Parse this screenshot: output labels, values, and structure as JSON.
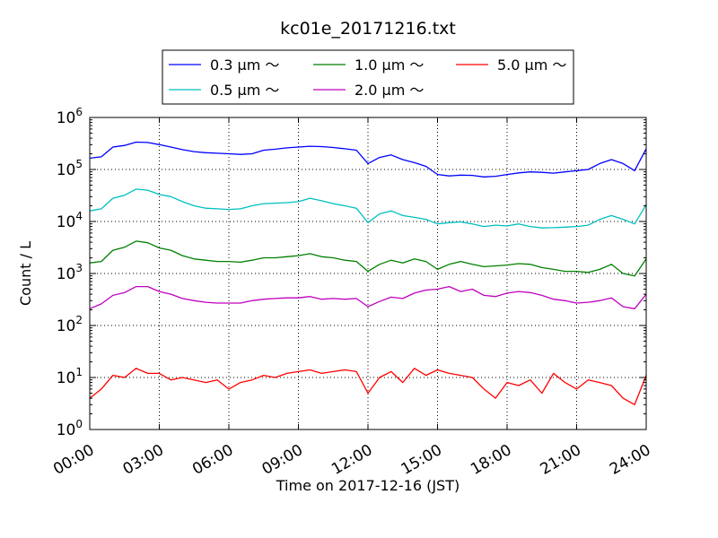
{
  "chart_data": {
    "type": "line",
    "title": "kc01e_20171216.txt",
    "xlabel": "Time on 2017-12-16 (JST)",
    "ylabel": "Count / L",
    "yscale": "log",
    "ylim": [
      1,
      1000000
    ],
    "xlim": [
      "00:00",
      "24:00"
    ],
    "xtick_labels": [
      "00:00",
      "03:00",
      "06:00",
      "09:00",
      "12:00",
      "15:00",
      "18:00",
      "21:00",
      "24:00"
    ],
    "ytick_labels": [
      {
        "base": "10",
        "exp": "0"
      },
      {
        "base": "10",
        "exp": "1"
      },
      {
        "base": "10",
        "exp": "2"
      },
      {
        "base": "10",
        "exp": "3"
      },
      {
        "base": "10",
        "exp": "4"
      },
      {
        "base": "10",
        "exp": "5"
      },
      {
        "base": "10",
        "exp": "6"
      }
    ],
    "grid": true,
    "legend_position": "top-center",
    "x_hours": [
      0,
      0.5,
      1,
      1.5,
      2,
      2.5,
      3,
      3.5,
      4,
      4.5,
      5,
      5.5,
      6,
      6.5,
      7,
      7.5,
      8,
      8.5,
      9,
      9.5,
      10,
      10.5,
      11,
      11.5,
      12,
      12.5,
      13,
      13.5,
      14,
      14.5,
      15,
      15.5,
      16,
      16.5,
      17,
      17.5,
      18,
      18.5,
      19,
      19.5,
      20,
      20.5,
      21,
      21.5,
      22,
      22.5,
      23,
      23.5,
      24
    ],
    "series": [
      {
        "name": "0.3 μm ～",
        "color": "#0000ff",
        "values": [
          165000,
          175000,
          270000,
          290000,
          335000,
          330000,
          300000,
          270000,
          240000,
          220000,
          210000,
          205000,
          200000,
          195000,
          200000,
          235000,
          245000,
          260000,
          270000,
          280000,
          275000,
          265000,
          250000,
          235000,
          130000,
          170000,
          190000,
          155000,
          135000,
          115000,
          80000,
          75000,
          78000,
          77000,
          72000,
          74000,
          80000,
          86000,
          90000,
          88000,
          85000,
          90000,
          95000,
          100000,
          130000,
          155000,
          130000,
          95000,
          250000
        ]
      },
      {
        "name": "0.5 μm ～",
        "color": "#00bfbf",
        "values": [
          16000,
          17500,
          28000,
          32000,
          42000,
          40000,
          33000,
          30000,
          24000,
          20000,
          18000,
          17500,
          17000,
          17500,
          20000,
          22000,
          22500,
          23000,
          24000,
          28000,
          25000,
          22000,
          20000,
          18000,
          9500,
          14000,
          16000,
          13000,
          12000,
          11000,
          9000,
          9500,
          9800,
          9000,
          8000,
          8500,
          8200,
          9000,
          8000,
          7500,
          7600,
          7800,
          8000,
          8500,
          11000,
          13000,
          11000,
          9000,
          21000
        ]
      },
      {
        "name": "1.0 μm ～",
        "color": "#008000",
        "values": [
          1600,
          1700,
          2800,
          3200,
          4200,
          3900,
          3100,
          2800,
          2200,
          1900,
          1800,
          1700,
          1700,
          1650,
          1800,
          2000,
          2000,
          2100,
          2200,
          2400,
          2100,
          2000,
          1800,
          1700,
          1100,
          1500,
          1800,
          1600,
          1900,
          1700,
          1200,
          1500,
          1700,
          1500,
          1350,
          1400,
          1450,
          1550,
          1500,
          1300,
          1200,
          1100,
          1100,
          1050,
          1200,
          1500,
          1000,
          900,
          1900
        ]
      },
      {
        "name": "2.0 μm ～",
        "color": "#bf00bf",
        "values": [
          210,
          260,
          380,
          430,
          560,
          560,
          450,
          400,
          330,
          300,
          280,
          270,
          270,
          270,
          300,
          320,
          330,
          340,
          340,
          360,
          320,
          330,
          320,
          330,
          230,
          290,
          350,
          330,
          420,
          480,
          500,
          560,
          450,
          500,
          380,
          360,
          420,
          450,
          430,
          380,
          320,
          300,
          270,
          280,
          300,
          340,
          230,
          210,
          400
        ]
      },
      {
        "name": "5.0 μm ～",
        "color": "#ff0000",
        "values": [
          4,
          6,
          11,
          10,
          15,
          12,
          12,
          9,
          10,
          9,
          8,
          9,
          6,
          8,
          9,
          11,
          10,
          12,
          13,
          14,
          12,
          13,
          14,
          13,
          5,
          10,
          13,
          8,
          15,
          11,
          14,
          12,
          11,
          10,
          6,
          4,
          8,
          7,
          9,
          5,
          12,
          8,
          6,
          9,
          8,
          7,
          4,
          3,
          11
        ]
      }
    ]
  }
}
